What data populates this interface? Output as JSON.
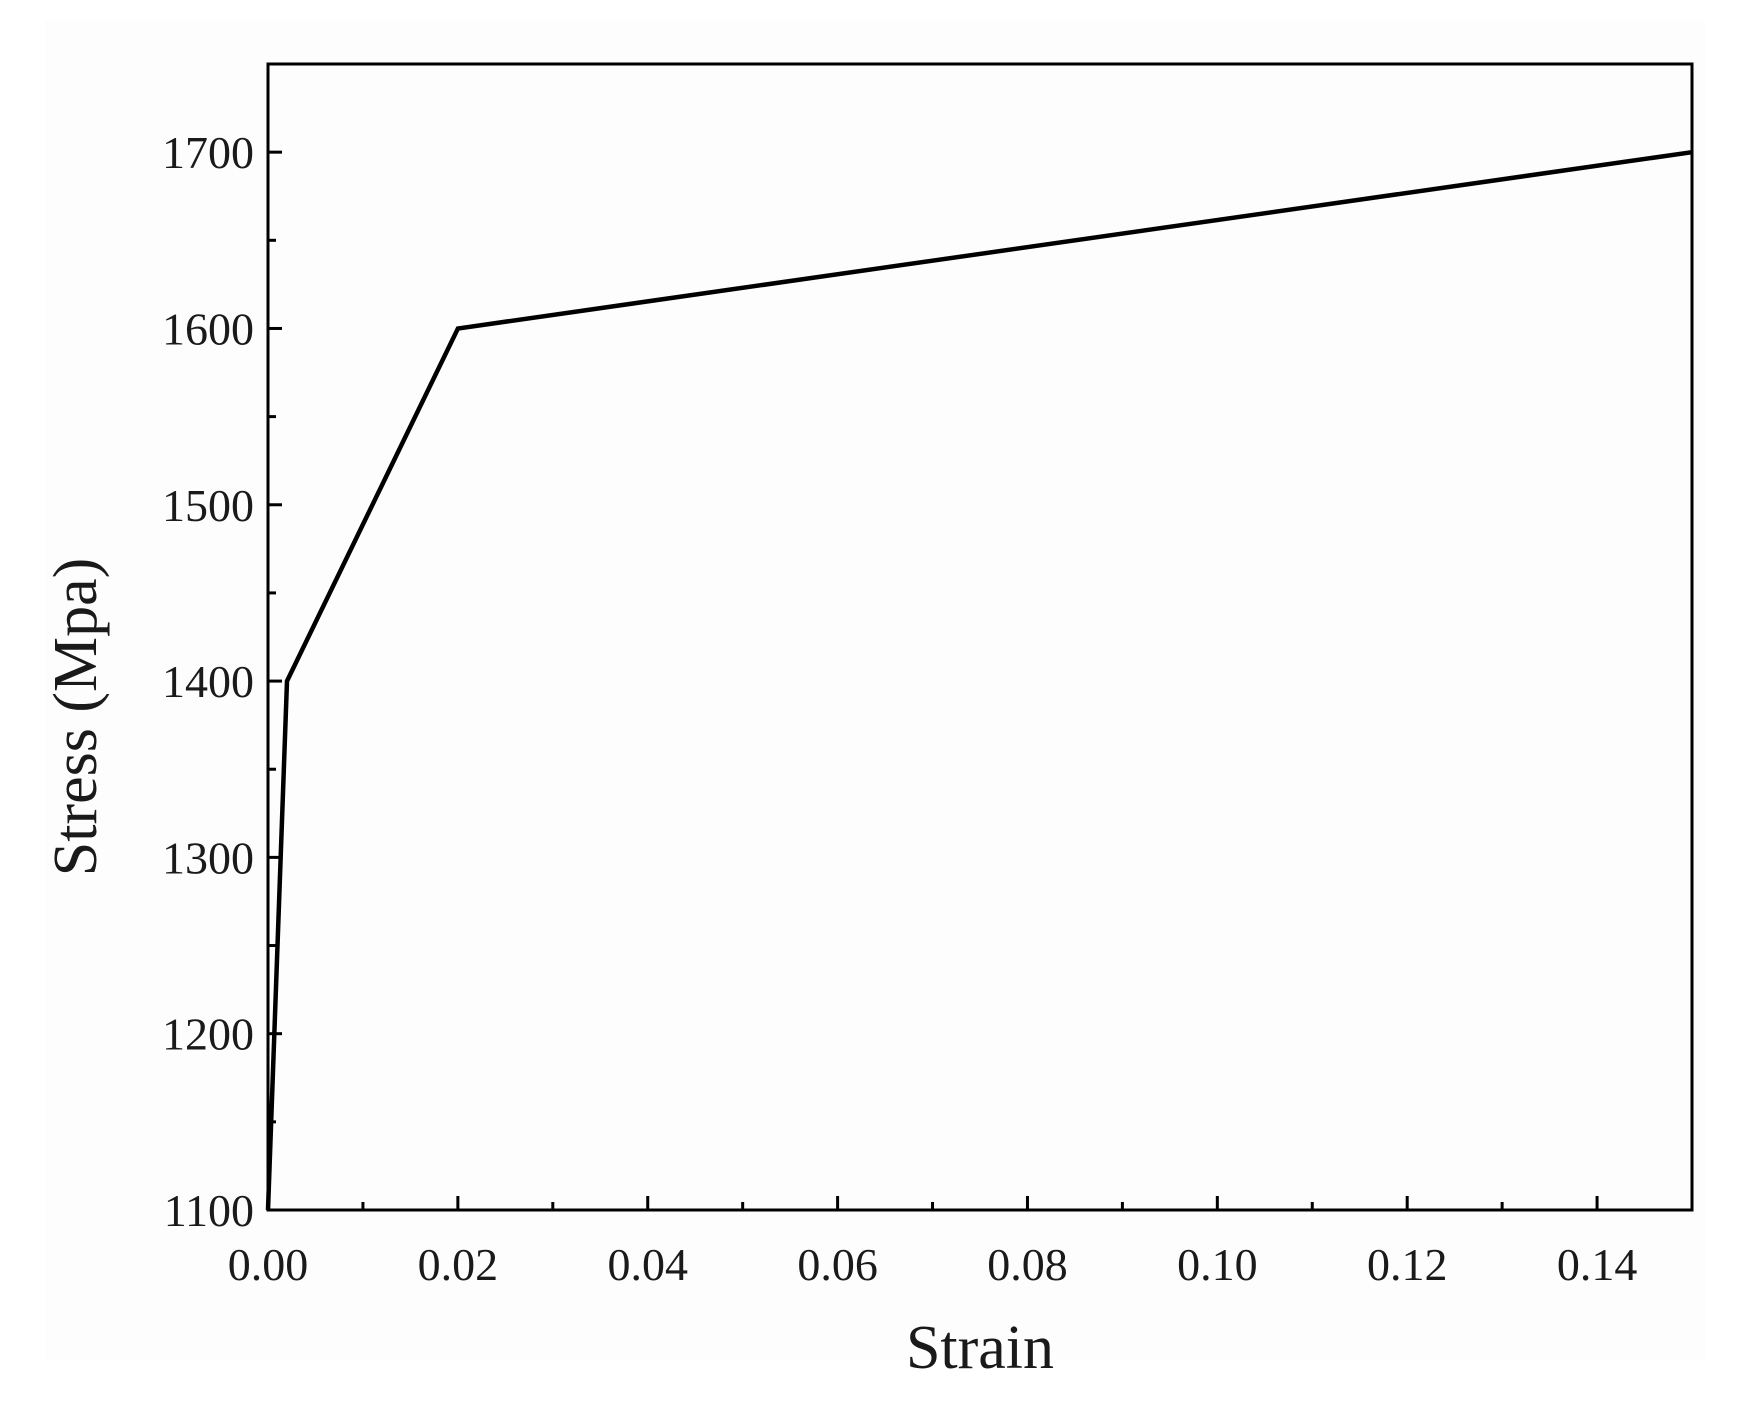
{
  "chart_data": {
    "type": "line",
    "title": "",
    "xlabel": "Strain",
    "ylabel": "Stress (Mpa)",
    "xlim": [
      0,
      0.15
    ],
    "ylim": [
      1100,
      1750
    ],
    "x_ticks": [
      0.0,
      0.02,
      0.04,
      0.06,
      0.08,
      0.1,
      0.12,
      0.14
    ],
    "x_tick_labels": [
      "0.00",
      "0.02",
      "0.04",
      "0.06",
      "0.08",
      "0.10",
      "0.12",
      "0.14"
    ],
    "x_minor_ticks": [
      0.01,
      0.03,
      0.05,
      0.07,
      0.09,
      0.11,
      0.13,
      0.15
    ],
    "y_ticks": [
      1100,
      1200,
      1300,
      1400,
      1500,
      1600,
      1700
    ],
    "y_tick_labels": [
      "1100",
      "1200",
      "1300",
      "1400",
      "1500",
      "1600",
      "1700"
    ],
    "y_minor_ticks": [
      1150,
      1250,
      1350,
      1450,
      1550,
      1650,
      1750
    ],
    "grid": false,
    "legend": "none",
    "series": [
      {
        "color": "#000000",
        "x": [
          0.0,
          0.002,
          0.02,
          0.15
        ],
        "y": [
          1100,
          1400,
          1600,
          1700
        ]
      }
    ]
  }
}
